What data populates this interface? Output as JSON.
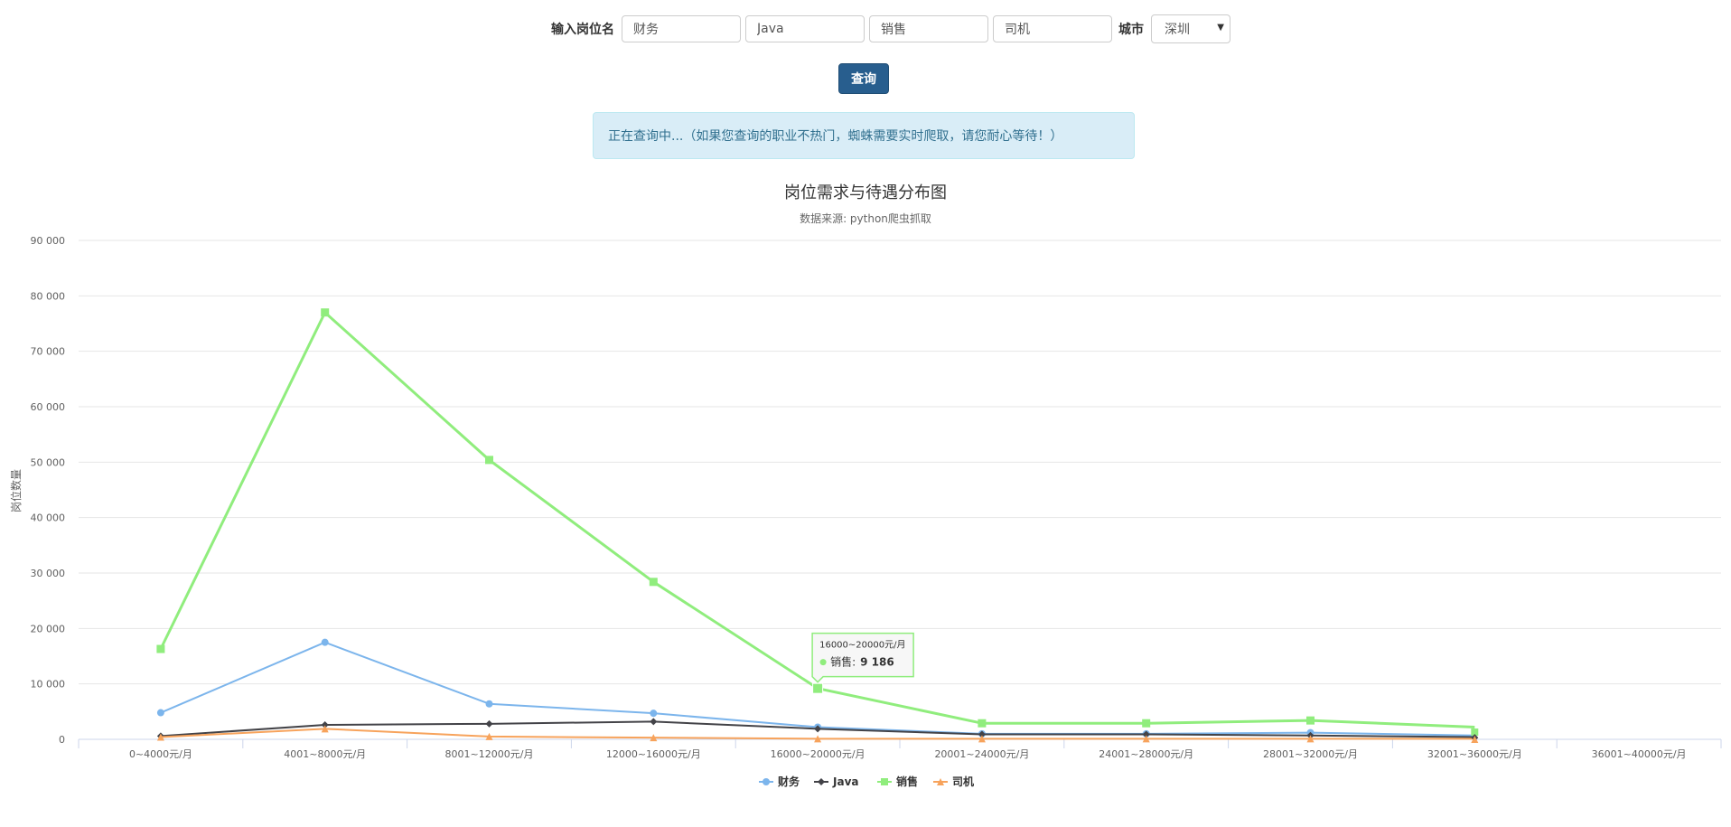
{
  "form": {
    "label": "输入岗位名",
    "inputs": [
      "财务",
      "Java",
      "销售",
      "司机"
    ],
    "city_label": "城市",
    "city_value": "深圳",
    "query_button": "查询"
  },
  "alert": {
    "text": "正在查询中...（如果您查询的职业不热门，蜘蛛需要实时爬取，请您耐心等待！）"
  },
  "chart_data": {
    "type": "line",
    "title": "岗位需求与待遇分布图",
    "subtitle": "数据来源: python爬虫抓取",
    "xlabel": "",
    "ylabel": "岗位数量",
    "ylim": [
      0,
      90000
    ],
    "yticks": [
      0,
      10000,
      20000,
      30000,
      40000,
      50000,
      60000,
      70000,
      80000,
      90000
    ],
    "ytick_labels": [
      "0",
      "10 000",
      "20 000",
      "30 000",
      "40 000",
      "50 000",
      "60 000",
      "70 000",
      "80 000",
      "90 000"
    ],
    "grid": true,
    "legend": "bottom-center",
    "categories": [
      "0~4000元/月",
      "4001~8000元/月",
      "8001~12000元/月",
      "12000~16000元/月",
      "16000~20000元/月",
      "20001~24000元/月",
      "24001~28000元/月",
      "28001~32000元/月",
      "32001~36000元/月",
      "36001~40000元/月"
    ],
    "series": [
      {
        "name": "财务",
        "color": "#7cb5ec",
        "marker": "circle",
        "values": [
          4800,
          17500,
          6400,
          4700,
          2200,
          1000,
          1000,
          1200,
          700,
          null
        ]
      },
      {
        "name": "Java",
        "color": "#434348",
        "marker": "diamond",
        "values": [
          600,
          2600,
          2800,
          3200,
          1900,
          900,
          900,
          700,
          400,
          null
        ]
      },
      {
        "name": "销售",
        "color": "#90ed7d",
        "marker": "square",
        "values": [
          16300,
          77000,
          50400,
          28400,
          9186,
          2900,
          2900,
          3400,
          2200,
          null
        ]
      },
      {
        "name": "司机",
        "color": "#f7a35c",
        "marker": "triangle",
        "values": [
          400,
          1900,
          500,
          300,
          100,
          100,
          100,
          100,
          100,
          null
        ]
      }
    ],
    "extra_points": [
      {
        "series": "销售",
        "value": 1300
      },
      {
        "series": "Java",
        "value": 300
      },
      {
        "series": "司机",
        "value": 0
      }
    ],
    "tooltip": {
      "category": "16000~20000元/月",
      "series": "销售",
      "value_label": "9 186"
    }
  }
}
